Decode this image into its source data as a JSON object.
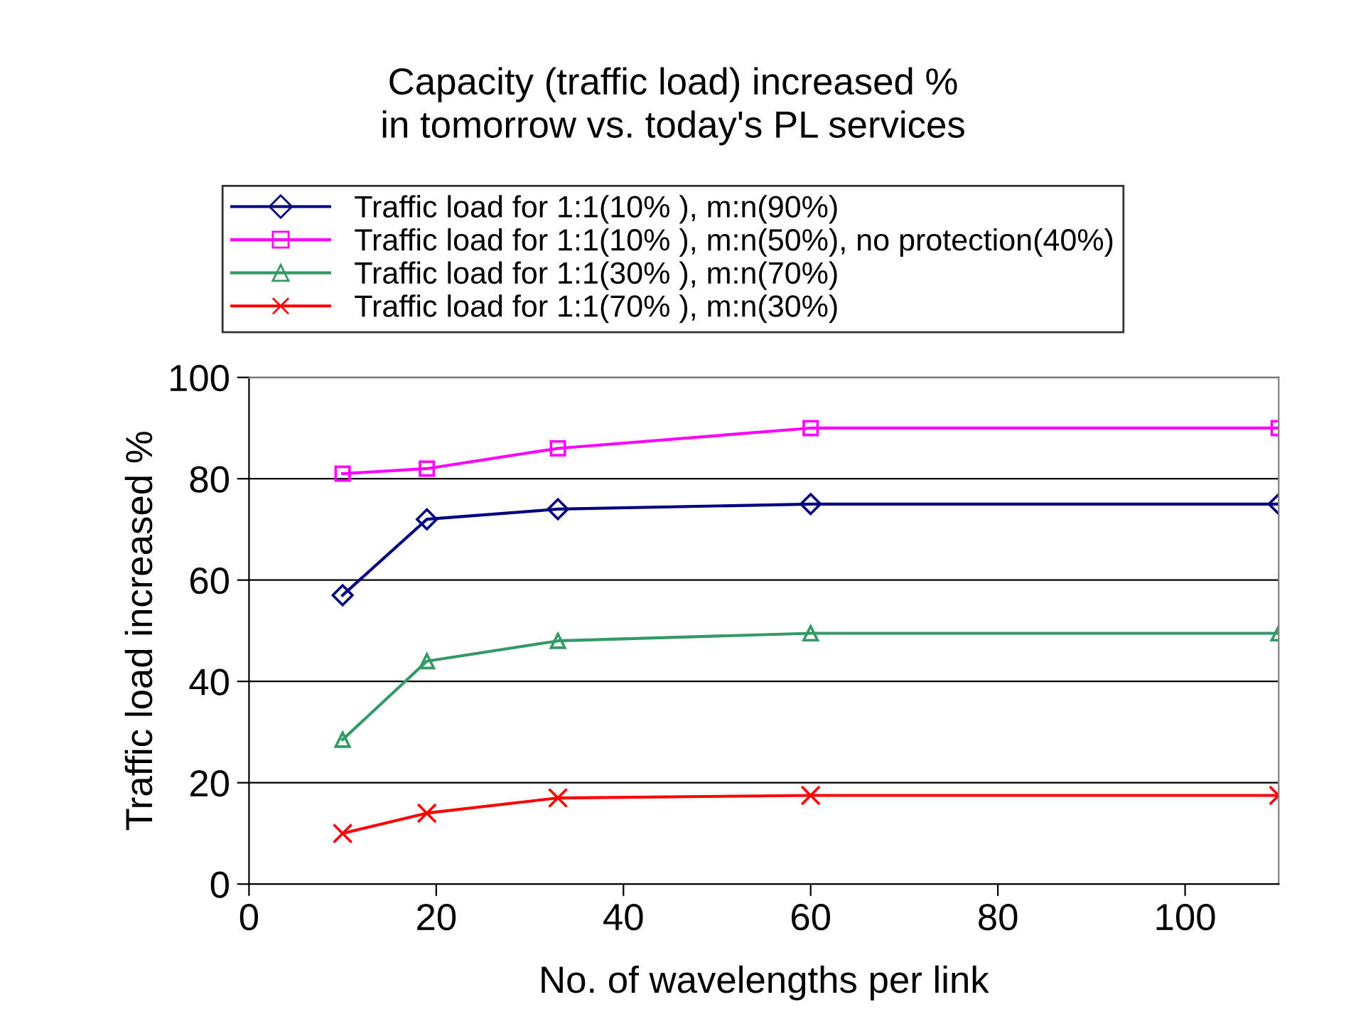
{
  "chart_data": {
    "type": "line",
    "title": "Capacity (traffic load) increased %\nin tomorrow vs. today's PL services",
    "xlabel": "No. of wavelengths per link",
    "ylabel": "Traffic load increased %",
    "x": [
      10,
      19,
      33,
      60,
      110
    ],
    "series": [
      {
        "name": "Traffic load for 1:1(10% ), m:n(90%)",
        "color": "#000080",
        "marker": "diamond",
        "values": [
          57,
          72,
          74,
          75,
          75
        ]
      },
      {
        "name": "Traffic load for 1:1(10% ), m:n(50%), no protection(40%)",
        "color": "#ff00ff",
        "marker": "square",
        "values": [
          81,
          82,
          86,
          90,
          90
        ]
      },
      {
        "name": "Traffic load for 1:1(30% ), m:n(70%)",
        "color": "#339966",
        "marker": "triangle",
        "values": [
          28.5,
          44,
          48,
          49.5,
          49.5
        ]
      },
      {
        "name": "Traffic load for 1:1(70% ), m:n(30%)",
        "color": "#ff0000",
        "marker": "cross",
        "values": [
          10,
          14,
          17,
          17.5,
          17.5
        ]
      }
    ],
    "xlim": [
      0,
      110
    ],
    "xticks": [
      0,
      20,
      40,
      60,
      80,
      100
    ],
    "ylim": [
      0,
      100
    ],
    "yticks": [
      0,
      20,
      40,
      60,
      80,
      100
    ],
    "grid": "y",
    "legend": "top",
    "line_style": "solid"
  }
}
